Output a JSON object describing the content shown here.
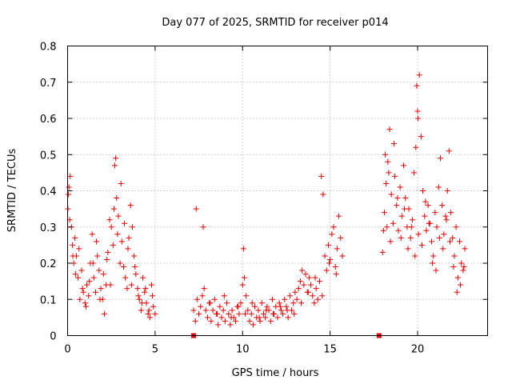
{
  "chart_data": {
    "type": "scatter",
    "title": "Day 077 of 2025, SRMTID for receiver p014",
    "xlabel": "GPS time / hours",
    "ylabel": "SRMTID / TECUs",
    "xlim": [
      0,
      24
    ],
    "ylim": [
      0,
      0.8
    ],
    "xticks": [
      0,
      5,
      10,
      15,
      20
    ],
    "yticks": [
      0,
      0.1,
      0.2,
      0.3,
      0.4,
      0.5,
      0.6,
      0.7,
      0.8
    ],
    "grid": true,
    "series": [
      {
        "name": "SRMTID",
        "color": "#e60000",
        "marker": "+",
        "x": [
          0.02,
          0.08,
          0.15,
          0.22,
          0.28,
          0.35,
          0.42,
          0.5,
          0.6,
          0.7,
          0.8,
          0.9,
          1.0,
          1.1,
          1.2,
          1.3,
          1.4,
          1.5,
          1.6,
          1.7,
          1.8,
          1.9,
          2.0,
          2.1,
          2.2,
          2.3,
          2.4,
          2.5,
          2.6,
          2.7,
          2.75,
          2.8,
          2.9,
          3.0,
          3.1,
          3.2,
          3.3,
          3.4,
          3.5,
          3.6,
          3.7,
          3.8,
          3.9,
          4.0,
          4.1,
          4.2,
          4.3,
          4.4,
          4.5,
          4.6,
          4.7,
          4.8,
          4.9,
          5.0,
          0.05,
          0.12,
          0.3,
          0.45,
          0.65,
          0.85,
          1.05,
          1.25,
          1.45,
          1.65,
          1.85,
          2.05,
          2.25,
          2.45,
          2.65,
          2.85,
          3.05,
          3.25,
          3.45,
          3.65,
          3.85,
          4.05,
          4.25,
          4.45,
          4.65,
          4.85,
          7.2,
          7.3,
          7.4,
          7.5,
          7.6,
          7.7,
          7.8,
          7.9,
          8.0,
          8.1,
          8.2,
          8.3,
          8.4,
          8.5,
          8.6,
          8.7,
          8.8,
          8.9,
          9.0,
          9.1,
          9.2,
          9.3,
          9.4,
          9.5,
          9.6,
          9.7,
          9.8,
          9.9,
          10.0,
          10.05,
          10.1,
          10.2,
          10.3,
          10.4,
          10.5,
          10.6,
          10.7,
          10.8,
          10.9,
          11.0,
          11.1,
          11.2,
          11.3,
          11.4,
          11.5,
          11.6,
          11.7,
          11.8,
          11.9,
          12.0,
          12.1,
          12.2,
          12.3,
          12.4,
          12.5,
          12.6,
          12.7,
          12.8,
          12.9,
          13.0,
          13.1,
          13.2,
          13.3,
          13.4,
          13.5,
          13.6,
          13.7,
          13.8,
          13.9,
          14.0,
          14.1,
          14.2,
          14.3,
          14.4,
          14.5,
          14.6,
          14.7,
          14.8,
          14.9,
          15.0,
          15.1,
          15.2,
          15.3,
          15.4,
          15.5,
          15.6,
          15.7,
          7.35,
          7.75,
          8.15,
          8.55,
          8.95,
          9.35,
          9.75,
          10.15,
          10.55,
          10.95,
          11.35,
          11.75,
          12.15,
          12.55,
          12.95,
          13.35,
          13.75,
          14.15,
          14.55,
          14.95,
          15.35,
          18.0,
          18.1,
          18.2,
          18.3,
          18.4,
          18.5,
          18.6,
          18.7,
          18.8,
          18.9,
          19.0,
          19.1,
          19.2,
          19.3,
          19.4,
          19.5,
          19.6,
          19.7,
          19.8,
          19.9,
          20.0,
          20.1,
          20.2,
          20.3,
          20.4,
          20.5,
          20.6,
          20.7,
          20.8,
          20.9,
          21.0,
          21.1,
          21.2,
          21.3,
          21.4,
          21.5,
          21.6,
          21.7,
          21.8,
          21.9,
          22.0,
          22.1,
          22.2,
          22.3,
          22.4,
          22.5,
          22.6,
          22.7,
          18.05,
          18.25,
          18.45,
          18.65,
          18.85,
          19.05,
          19.25,
          19.45,
          19.65,
          19.85,
          20.05,
          20.25,
          20.45,
          20.65,
          20.85,
          21.05,
          21.25,
          21.45,
          21.65,
          21.85,
          22.05,
          22.25,
          22.45,
          22.65,
          19.95,
          20.02,
          18.15,
          18.35
        ],
        "y": [
          0.35,
          0.41,
          0.44,
          0.3,
          0.25,
          0.2,
          0.27,
          0.22,
          0.16,
          0.1,
          0.18,
          0.12,
          0.09,
          0.14,
          0.11,
          0.2,
          0.28,
          0.16,
          0.12,
          0.22,
          0.18,
          0.13,
          0.1,
          0.06,
          0.14,
          0.23,
          0.32,
          0.3,
          0.25,
          0.47,
          0.49,
          0.38,
          0.33,
          0.2,
          0.26,
          0.19,
          0.16,
          0.13,
          0.27,
          0.36,
          0.3,
          0.22,
          0.17,
          0.13,
          0.1,
          0.07,
          0.16,
          0.12,
          0.09,
          0.06,
          0.05,
          0.14,
          0.08,
          0.06,
          0.39,
          0.32,
          0.22,
          0.17,
          0.24,
          0.13,
          0.08,
          0.15,
          0.2,
          0.26,
          0.1,
          0.17,
          0.21,
          0.14,
          0.35,
          0.28,
          0.42,
          0.31,
          0.24,
          0.14,
          0.19,
          0.11,
          0.09,
          0.13,
          0.07,
          0.11,
          0.07,
          0.04,
          0.1,
          0.06,
          0.08,
          0.11,
          0.13,
          0.07,
          0.05,
          0.09,
          0.04,
          0.07,
          0.1,
          0.06,
          0.03,
          0.08,
          0.05,
          0.07,
          0.04,
          0.09,
          0.06,
          0.03,
          0.07,
          0.05,
          0.04,
          0.08,
          0.06,
          0.09,
          0.14,
          0.24,
          0.16,
          0.11,
          0.07,
          0.04,
          0.06,
          0.03,
          0.08,
          0.05,
          0.07,
          0.04,
          0.09,
          0.06,
          0.05,
          0.08,
          0.07,
          0.04,
          0.1,
          0.06,
          0.08,
          0.05,
          0.09,
          0.07,
          0.06,
          0.1,
          0.08,
          0.05,
          0.11,
          0.07,
          0.09,
          0.12,
          0.1,
          0.13,
          0.15,
          0.18,
          0.14,
          0.17,
          0.12,
          0.16,
          0.14,
          0.11,
          0.09,
          0.13,
          0.1,
          0.15,
          0.44,
          0.39,
          0.22,
          0.18,
          0.25,
          0.21,
          0.28,
          0.3,
          0.19,
          0.24,
          0.33,
          0.27,
          0.22,
          0.35,
          0.3,
          0.09,
          0.06,
          0.11,
          0.05,
          0.08,
          0.06,
          0.09,
          0.05,
          0.07,
          0.06,
          0.08,
          0.07,
          0.06,
          0.09,
          0.12,
          0.16,
          0.11,
          0.2,
          0.17,
          0.23,
          0.34,
          0.42,
          0.48,
          0.57,
          0.39,
          0.31,
          0.44,
          0.36,
          0.29,
          0.41,
          0.33,
          0.47,
          0.38,
          0.3,
          0.35,
          0.27,
          0.32,
          0.45,
          0.52,
          0.62,
          0.72,
          0.55,
          0.4,
          0.33,
          0.29,
          0.36,
          0.31,
          0.26,
          0.22,
          0.34,
          0.3,
          0.41,
          0.49,
          0.36,
          0.28,
          0.33,
          0.4,
          0.51,
          0.34,
          0.27,
          0.22,
          0.3,
          0.16,
          0.26,
          0.2,
          0.18,
          0.24,
          0.29,
          0.3,
          0.26,
          0.53,
          0.38,
          0.27,
          0.35,
          0.24,
          0.3,
          0.22,
          0.28,
          0.25,
          0.37,
          0.31,
          0.2,
          0.18,
          0.27,
          0.24,
          0.32,
          0.26,
          0.19,
          0.12,
          0.14,
          0.19,
          0.69,
          0.6,
          0.5,
          0.45
        ]
      }
    ],
    "gap_markers": {
      "x": [
        7.2,
        17.8
      ],
      "y": [
        0,
        0
      ]
    }
  }
}
